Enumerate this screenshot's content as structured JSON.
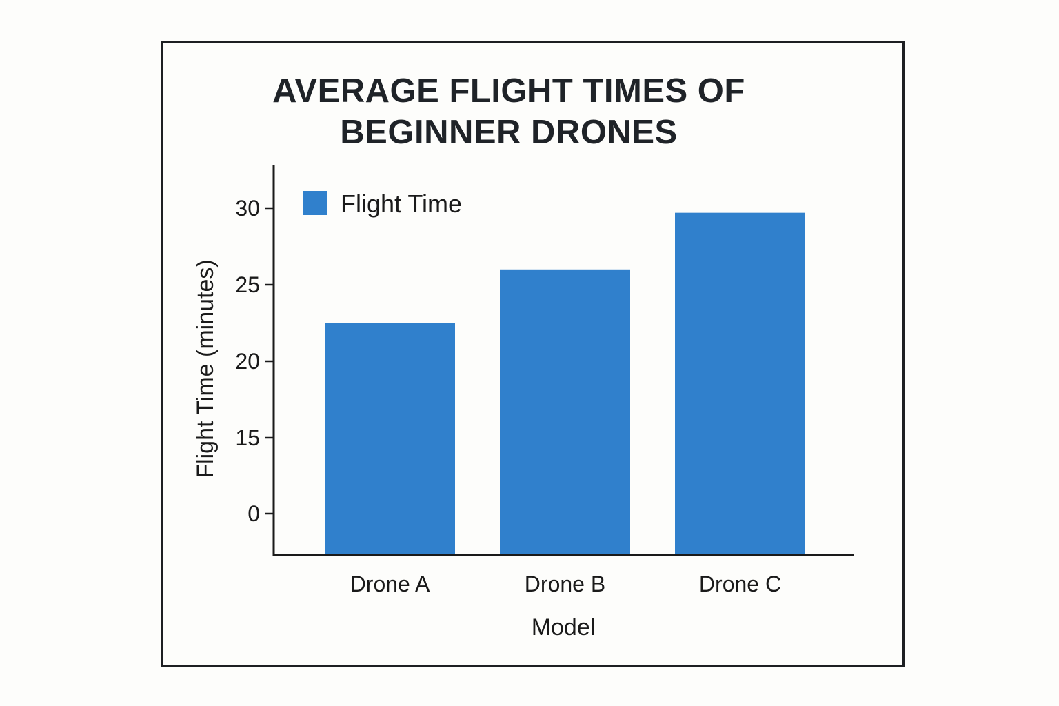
{
  "chart_data": {
    "type": "bar",
    "title_lines": [
      "AVERAGE FLIGHT TIMES OF",
      "BEGINNER DRONES"
    ],
    "categories": [
      "Drone A",
      "Drone B",
      "Drone C"
    ],
    "series": [
      {
        "name": "Flight Time",
        "values": [
          22.5,
          26,
          29.7
        ],
        "color": "#3080cc"
      }
    ],
    "xlabel": "Model",
    "ylabel": "Flight Time (minutes)",
    "yticks": [
      0,
      15,
      20,
      25,
      30
    ],
    "legend_position": "top-left",
    "grid": false
  }
}
